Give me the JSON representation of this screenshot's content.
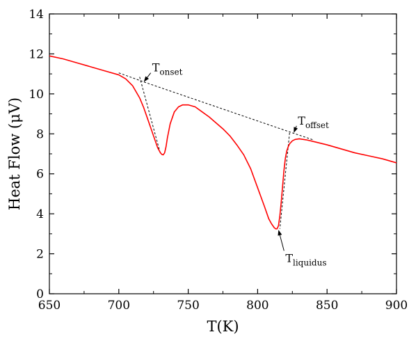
{
  "chart_data": {
    "type": "line",
    "title": "",
    "xlabel": "T(K)",
    "ylabel": "Heat Flow (μV)",
    "xlim": [
      650,
      900
    ],
    "ylim": [
      0,
      14
    ],
    "grid": false,
    "x_ticks": [
      650,
      700,
      750,
      800,
      850,
      900
    ],
    "y_ticks": [
      0,
      2,
      4,
      6,
      8,
      10,
      12,
      14
    ],
    "x_tick_labels": [
      "650",
      "700",
      "750",
      "800",
      "850",
      "900"
    ],
    "y_tick_labels": [
      "0",
      "2",
      "4",
      "6",
      "8",
      "10",
      "12",
      "14"
    ],
    "series": [
      {
        "color": "#ff0000",
        "x": [
          650,
          660,
          670,
          680,
          690,
          700,
          705,
          710,
          715,
          718,
          720,
          723,
          726,
          728,
          730,
          731,
          732,
          733,
          734,
          735,
          737,
          740,
          743,
          746,
          750,
          755,
          760,
          765,
          770,
          775,
          780,
          785,
          790,
          795,
          800,
          805,
          808,
          810,
          812,
          813,
          814,
          815,
          816,
          817,
          818,
          819,
          820,
          821,
          822,
          823,
          825,
          827,
          830,
          835,
          840,
          850,
          860,
          870,
          880,
          890,
          900
        ],
        "y": [
          11.9,
          11.75,
          11.55,
          11.35,
          11.15,
          10.95,
          10.75,
          10.4,
          9.8,
          9.3,
          8.9,
          8.3,
          7.7,
          7.3,
          7.05,
          6.97,
          6.95,
          7.05,
          7.35,
          7.8,
          8.5,
          9.1,
          9.35,
          9.45,
          9.45,
          9.35,
          9.1,
          8.85,
          8.55,
          8.25,
          7.9,
          7.45,
          6.95,
          6.25,
          5.3,
          4.35,
          3.75,
          3.5,
          3.3,
          3.25,
          3.25,
          3.4,
          3.9,
          4.6,
          5.4,
          6.2,
          6.8,
          7.15,
          7.35,
          7.5,
          7.65,
          7.72,
          7.75,
          7.7,
          7.62,
          7.45,
          7.25,
          7.05,
          6.9,
          6.75,
          6.55
        ]
      }
    ],
    "baseline_segments": [
      {
        "x": [
          700,
          720,
          825,
          840
        ],
        "y": [
          11.05,
          10.55,
          8.05,
          7.7
        ]
      },
      {
        "x": [
          715,
          730
        ],
        "y": [
          10.85,
          7.0
        ]
      },
      {
        "x": [
          823,
          816
        ],
        "y": [
          8.05,
          3.25
        ]
      }
    ],
    "annotations": [
      {
        "main": "T",
        "sub": "onset",
        "point": [
          718,
          10.6
        ],
        "label_pos": [
          723,
          11.05
        ]
      },
      {
        "main": "T",
        "sub": "offset",
        "point": [
          826,
          8.05
        ],
        "label_pos": [
          828,
          8.4
        ]
      },
      {
        "main": "T",
        "sub": "liquidus",
        "point": [
          815,
          3.2
        ],
        "label_pos": [
          819,
          2.15
        ]
      }
    ]
  }
}
